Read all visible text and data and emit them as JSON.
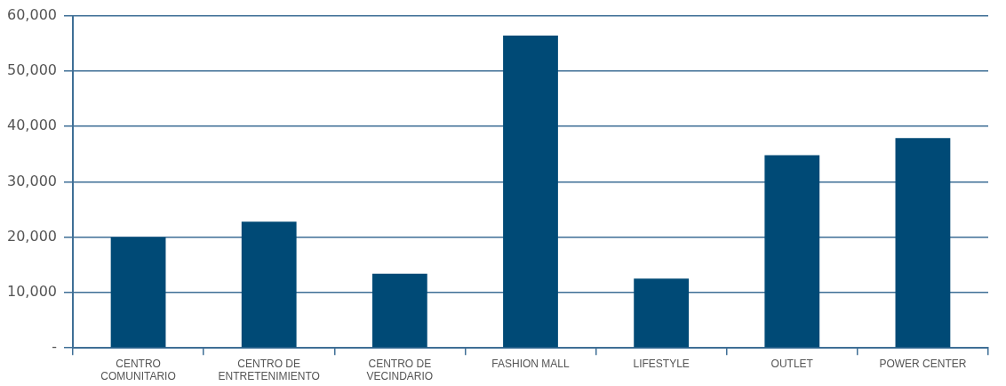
{
  "chart_data": {
    "type": "bar",
    "categories": [
      "CENTRO COMUNITARIO",
      "CENTRO DE ENTRETENIMIENTO",
      "CENTRO DE VECINDARIO",
      "FASHION MALL",
      "LIFESTYLE",
      "OUTLET",
      "POWER CENTER"
    ],
    "values": [
      20000,
      22800,
      13400,
      56400,
      12500,
      34800,
      37900
    ],
    "color": "#004a76",
    "ylim": [
      0,
      60000
    ],
    "yticks": [
      {
        "value": 0,
        "label": "-"
      },
      {
        "value": 10000,
        "label": "10,000"
      },
      {
        "value": 20000,
        "label": "20,000"
      },
      {
        "value": 30000,
        "label": "30,000"
      },
      {
        "value": 40000,
        "label": "40,000"
      },
      {
        "value": 50000,
        "label": "50,000"
      },
      {
        "value": 60000,
        "label": "60,000"
      }
    ],
    "grid": "y",
    "legend": false
  }
}
